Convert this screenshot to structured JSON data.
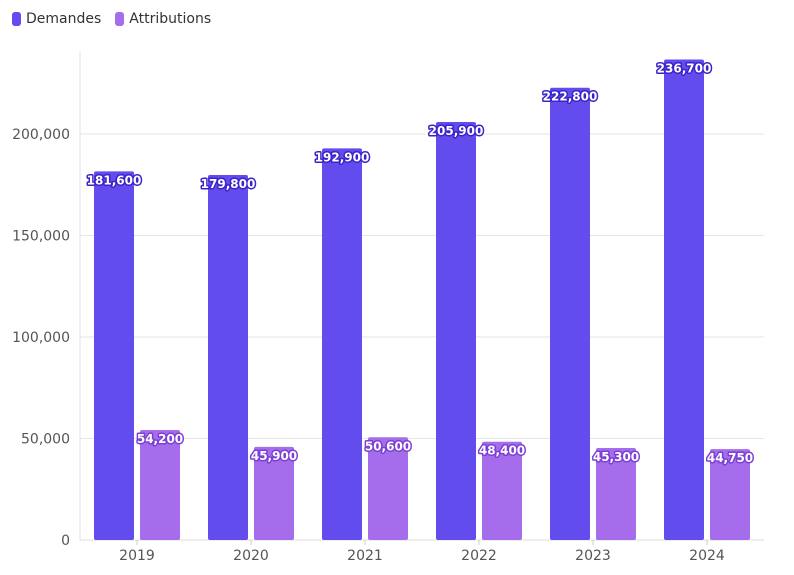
{
  "chart_data": {
    "type": "bar",
    "categories": [
      "2019",
      "2020",
      "2021",
      "2022",
      "2023",
      "2024"
    ],
    "series": [
      {
        "name": "Demandes",
        "color": "#634ced",
        "values": [
          181600,
          179800,
          192900,
          205900,
          222800,
          236700
        ],
        "labels": [
          "181,600",
          "179,800",
          "192,900",
          "205,900",
          "222,800",
          "236,700"
        ]
      },
      {
        "name": "Attributions",
        "color": "#a56deb",
        "values": [
          54200,
          45900,
          50600,
          48400,
          45300,
          44750
        ],
        "labels": [
          "54,200",
          "45,900",
          "50,600",
          "48,400",
          "45,300",
          "44,750"
        ]
      }
    ],
    "yticks": [
      0,
      50000,
      100000,
      150000,
      200000
    ],
    "ytick_labels": [
      "0",
      "50,000",
      "100,000",
      "150,000",
      "200,000"
    ],
    "ylim": [
      0,
      240000
    ],
    "grid": true,
    "legend_position": "top-left"
  }
}
